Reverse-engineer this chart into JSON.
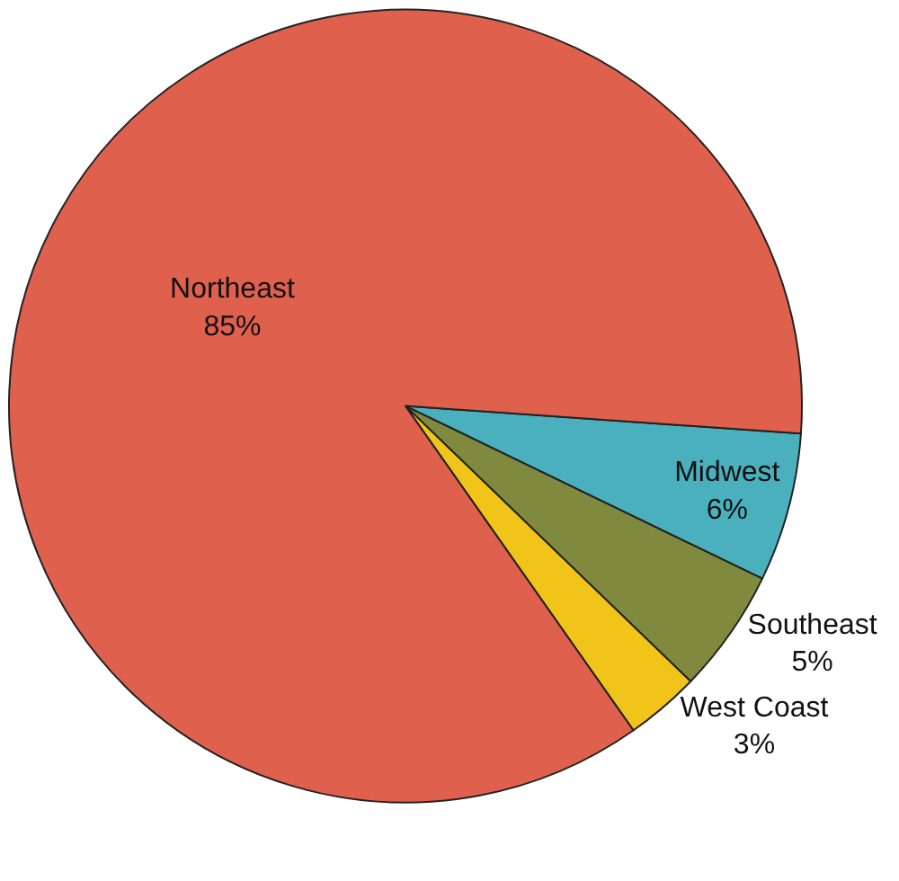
{
  "chart_data": {
    "type": "pie",
    "categories": [
      "Midwest",
      "Southeast",
      "West Coast",
      "Northeast"
    ],
    "values": [
      6,
      5,
      3,
      85
    ],
    "value_labels": [
      "6%",
      "5%",
      "3%",
      "85%"
    ],
    "colors": [
      "#4ab0be",
      "#7f8a3e",
      "#f0c419",
      "#e0604e"
    ],
    "legend": false
  }
}
